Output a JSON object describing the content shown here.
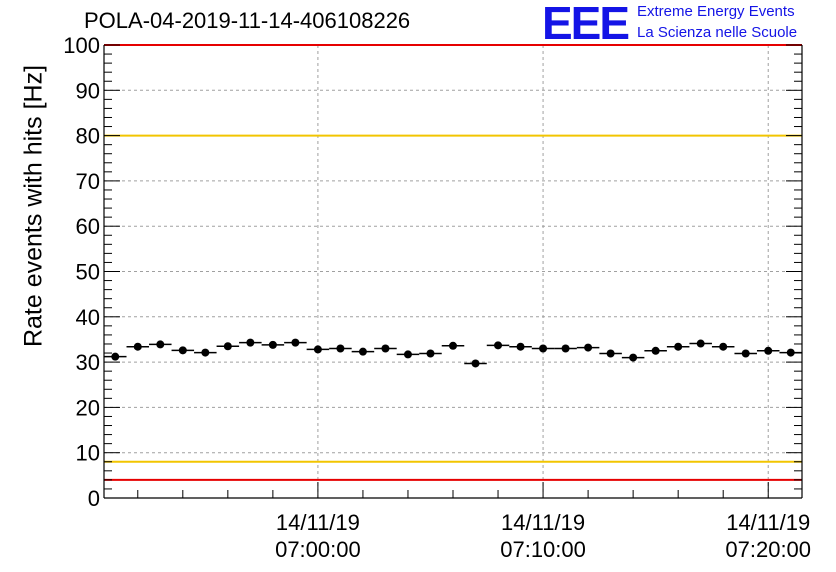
{
  "chart_data": {
    "type": "scatter",
    "title": "POLA-04-2019-11-14-406108226",
    "ylabel": "Rate events with hits [Hz]",
    "xlabel": "",
    "ylim": [
      0,
      100
    ],
    "yticks": [
      0,
      10,
      20,
      30,
      40,
      50,
      60,
      70,
      80,
      90,
      100
    ],
    "xticks": [
      {
        "date": "14/11/19",
        "time": "07:00:00"
      },
      {
        "date": "14/11/19",
        "time": "07:10:00"
      },
      {
        "date": "14/11/19",
        "time": "07:20:00"
      }
    ],
    "xrange": [
      "06:50:30",
      "07:21:30"
    ],
    "bin_minutes": 1,
    "grid": true,
    "reference_lines": [
      {
        "y": 80,
        "color": "#f2c500"
      },
      {
        "y": 8,
        "color": "#f2c500"
      },
      {
        "y": 4,
        "color": "#e60000"
      },
      {
        "y": 100,
        "color": "#e60000"
      }
    ],
    "marker_color": "#000000",
    "points": [
      {
        "x": "06:51",
        "y": 31.2
      },
      {
        "x": "06:52",
        "y": 33.4
      },
      {
        "x": "06:53",
        "y": 33.9
      },
      {
        "x": "06:54",
        "y": 32.6
      },
      {
        "x": "06:55",
        "y": 32.1
      },
      {
        "x": "06:56",
        "y": 33.5
      },
      {
        "x": "06:57",
        "y": 34.3
      },
      {
        "x": "06:58",
        "y": 33.8
      },
      {
        "x": "06:59",
        "y": 34.3
      },
      {
        "x": "07:00",
        "y": 32.8
      },
      {
        "x": "07:01",
        "y": 33.0
      },
      {
        "x": "07:02",
        "y": 32.3
      },
      {
        "x": "07:03",
        "y": 33.0
      },
      {
        "x": "07:04",
        "y": 31.7
      },
      {
        "x": "07:05",
        "y": 31.9
      },
      {
        "x": "07:06",
        "y": 33.6
      },
      {
        "x": "07:07",
        "y": 29.7
      },
      {
        "x": "07:08",
        "y": 33.7
      },
      {
        "x": "07:09",
        "y": 33.4
      },
      {
        "x": "07:10",
        "y": 33.0
      },
      {
        "x": "07:11",
        "y": 33.0
      },
      {
        "x": "07:12",
        "y": 33.2
      },
      {
        "x": "07:13",
        "y": 31.9
      },
      {
        "x": "07:14",
        "y": 31.0
      },
      {
        "x": "07:15",
        "y": 32.5
      },
      {
        "x": "07:16",
        "y": 33.4
      },
      {
        "x": "07:17",
        "y": 34.1
      },
      {
        "x": "07:18",
        "y": 33.4
      },
      {
        "x": "07:19",
        "y": 31.9
      },
      {
        "x": "07:20",
        "y": 32.5
      },
      {
        "x": "07:21",
        "y": 32.1
      }
    ]
  },
  "logo": {
    "mark": "EEE",
    "line1": "Extreme Energy Events",
    "line2": "La Scienza nelle Scuole"
  }
}
